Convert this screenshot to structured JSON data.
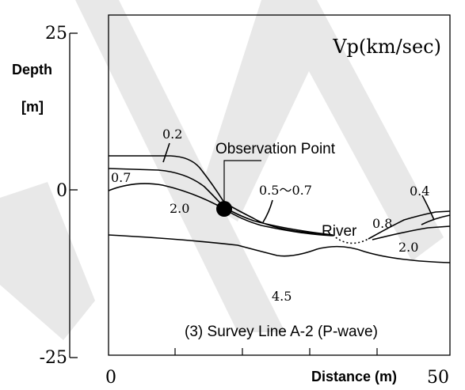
{
  "figure": {
    "y_axis": {
      "label_line1": "Depth",
      "label_line2": "[m]",
      "ticks": [
        "25",
        "0",
        "-25"
      ]
    },
    "x_axis": {
      "label": "Distance (m)",
      "ticks": [
        "0",
        "50"
      ]
    },
    "legend_unit": "Vp(km/sec)",
    "caption": "(3) Survey Line A-2 (P-wave)",
    "annotations": {
      "observation_point": "Observation Point",
      "river": "River"
    },
    "velocity_labels": [
      "0.2",
      "0.7",
      "2.0",
      "0.5～0.7",
      "0.4",
      "0.8",
      "2.0",
      "4.5"
    ]
  },
  "colors": {
    "ink": "#000000",
    "watermark": "#e6e6e6"
  }
}
